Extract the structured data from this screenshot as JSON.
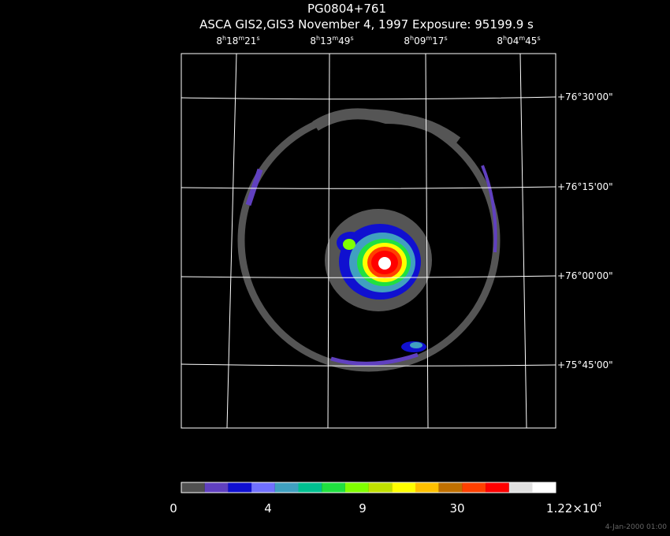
{
  "title": "PG0804+761",
  "subtitle": "ASCA GIS2,GIS3 November 4, 1997 Exposure: 95199.9 s",
  "ra_labels": [
    [
      "8",
      "h",
      "18",
      "m",
      "21",
      "s"
    ],
    [
      "8",
      "h",
      "13",
      "m",
      "49",
      "s"
    ],
    [
      "8",
      "h",
      "09",
      "m",
      "17",
      "s"
    ],
    [
      "8",
      "h",
      "04",
      "m",
      "45",
      "s"
    ]
  ],
  "dec_labels": [
    "+76°30'00\"",
    "+76°15'00\"",
    "+76°00'00\"",
    "+75°45'00\""
  ],
  "colorbar_labels": [
    [
      "0"
    ],
    [
      "4"
    ],
    [
      "9"
    ],
    [
      "30"
    ],
    [
      "1.22×10",
      "4"
    ]
  ],
  "timestamp": "4-Jan-2000 01:00"
}
